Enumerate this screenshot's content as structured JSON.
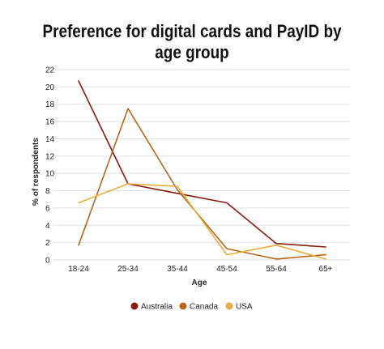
{
  "chart_data": {
    "type": "line",
    "title": "Preference for digital cards and PayID by age group",
    "xlabel": "Age",
    "ylabel": "% of respondents",
    "categories": [
      "18-24",
      "25-34",
      "35-44",
      "45-54",
      "55-64",
      "65+"
    ],
    "ylim": [
      0,
      22
    ],
    "yticks": [
      0,
      2,
      4,
      6,
      8,
      10,
      12,
      14,
      16,
      18,
      20,
      22
    ],
    "grid": true,
    "legend_position": "bottom",
    "series": [
      {
        "name": "Australia",
        "color": "#8b1a0e",
        "values": [
          20.7,
          8.8,
          7.7,
          6.6,
          1.9,
          1.5
        ]
      },
      {
        "name": "Canada",
        "color": "#b8651b",
        "values": [
          1.7,
          17.5,
          8.1,
          1.3,
          0.1,
          0.6
        ]
      },
      {
        "name": "USA",
        "color": "#e6ad3c",
        "values": [
          6.6,
          8.8,
          8.5,
          0.6,
          1.7,
          0.1
        ]
      }
    ]
  }
}
